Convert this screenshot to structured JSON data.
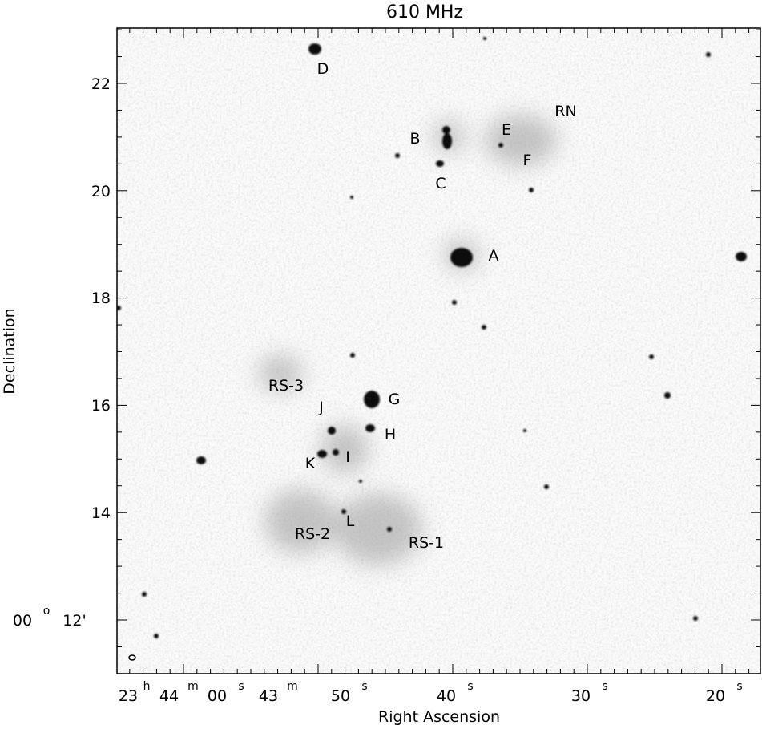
{
  "figure": {
    "title": "610 MHz",
    "x_label": "Right Ascension",
    "y_label": "Declination",
    "x_ticks": [
      [
        "23",
        "h",
        "44",
        "m",
        "00",
        "s"
      ],
      [
        "43",
        "m",
        "50",
        "s"
      ],
      [
        "40",
        "s"
      ],
      [
        "30",
        "s"
      ],
      [
        "20",
        "s"
      ]
    ],
    "y_ticks": [
      "22",
      "20",
      "18",
      "16",
      "14",
      [
        "00",
        "o",
        "12'"
      ]
    ],
    "sources": [
      "D",
      "B",
      "E",
      "RN",
      "F",
      "C",
      "A",
      "RS-3",
      "J",
      "G",
      "H",
      "I",
      "K",
      "L",
      "RS-2",
      "RS-1"
    ]
  }
}
